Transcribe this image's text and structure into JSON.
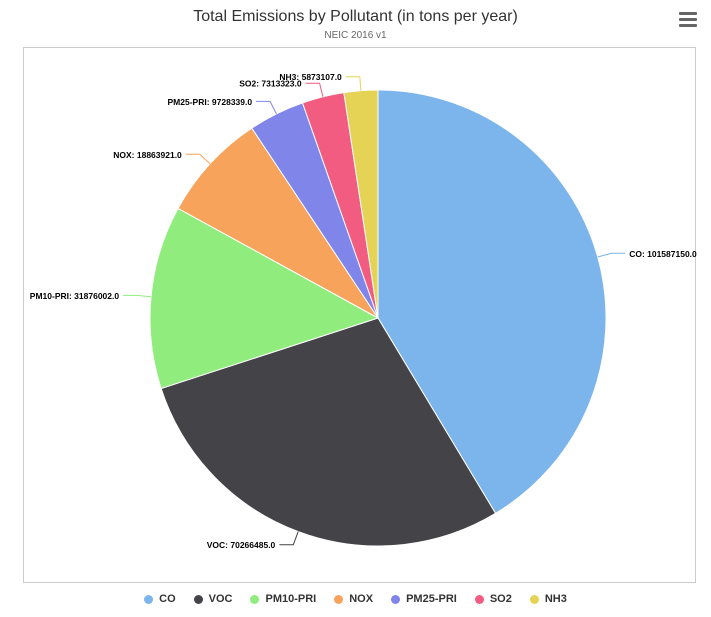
{
  "chart_data": {
    "type": "pie",
    "title": "Total Emissions by Pollutant (in tons per year)",
    "subtitle": "NEIC 2016 v1",
    "slices": [
      {
        "name": "CO",
        "value": 101587150.0,
        "label": "CO: 101587150.0",
        "color": "#7cb5ec"
      },
      {
        "name": "VOC",
        "value": 70266485.0,
        "label": "VOC: 70266485.0",
        "color": "#434348"
      },
      {
        "name": "PM10-PRI",
        "value": 31876002.0,
        "label": "PM10-PRI: 31876002.0",
        "color": "#90ed7d"
      },
      {
        "name": "NOX",
        "value": 18863921.0,
        "label": "NOX: 18863921.0",
        "color": "#f7a35c"
      },
      {
        "name": "PM25-PRI",
        "value": 9728339.0,
        "label": "PM25-PRI: 9728339.0",
        "color": "#8085e9"
      },
      {
        "name": "SO2",
        "value": 7313323.0,
        "label": "SO2: 7313323.0",
        "color": "#f15c80"
      },
      {
        "name": "NH3",
        "value": 5873107.0,
        "label": "NH3: 5873107.0",
        "color": "#e4d354"
      }
    ],
    "legend_position": "bottom"
  },
  "legend": {
    "items": [
      {
        "label": "CO",
        "color": "#7cb5ec"
      },
      {
        "label": "VOC",
        "color": "#434348"
      },
      {
        "label": "PM10-PRI",
        "color": "#90ed7d"
      },
      {
        "label": "NOX",
        "color": "#f7a35c"
      },
      {
        "label": "PM25-PRI",
        "color": "#8085e9"
      },
      {
        "label": "SO2",
        "color": "#f15c80"
      },
      {
        "label": "NH3",
        "color": "#e4d354"
      }
    ]
  },
  "menu": {
    "icon": "hamburger-menu-icon"
  }
}
